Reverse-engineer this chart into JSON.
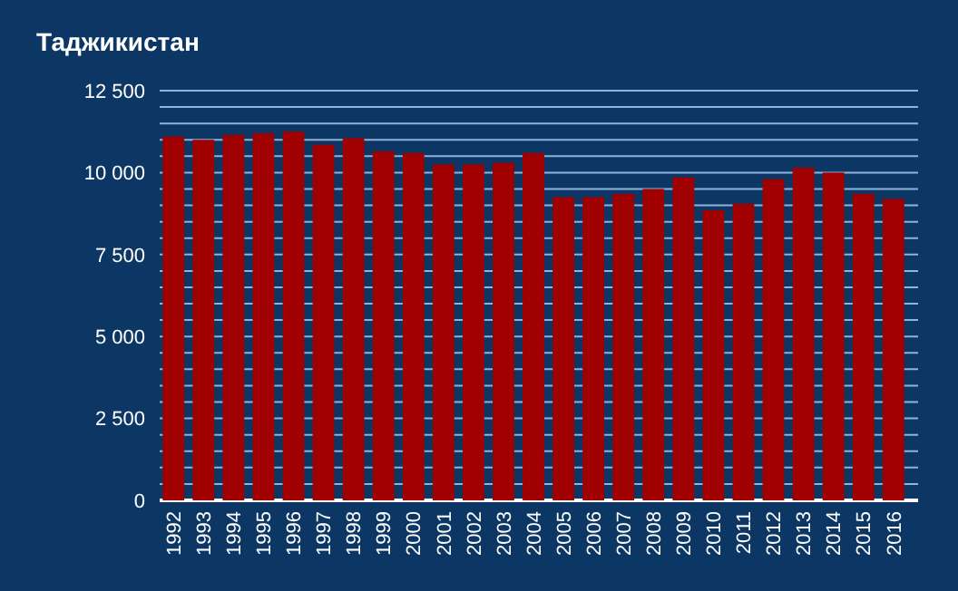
{
  "chart_data": {
    "type": "bar",
    "title": "Таджикистан",
    "categories": [
      "1992",
      "1993",
      "1994",
      "1995",
      "1996",
      "1997",
      "1998",
      "1999",
      "2000",
      "2001",
      "2002",
      "2003",
      "2004",
      "2005",
      "2006",
      "2007",
      "2008",
      "2009",
      "2010",
      "2011",
      "2012",
      "2013",
      "2014",
      "2015",
      "2016"
    ],
    "values": [
      11100,
      11000,
      11150,
      11200,
      11250,
      10850,
      11050,
      10650,
      10600,
      10250,
      10250,
      10300,
      10600,
      9250,
      9250,
      9350,
      9500,
      9850,
      8850,
      9050,
      9800,
      10150,
      10000,
      9350,
      9200
    ],
    "color": "#a00000",
    "ylim": [
      0,
      12500
    ],
    "yticks": [
      0,
      {
        "value": 500,
        "label": null
      },
      {
        "value": 1000,
        "label": null
      },
      {
        "value": 1500,
        "label": null
      },
      {
        "value": 2000,
        "label": null
      },
      {
        "value": 2500,
        "label": "2 500"
      },
      {
        "value": 3000,
        "label": null
      },
      {
        "value": 3500,
        "label": null
      },
      {
        "value": 4000,
        "label": null
      },
      {
        "value": 4500,
        "label": null
      },
      {
        "value": 5000,
        "label": "5 000"
      },
      {
        "value": 5500,
        "label": null
      },
      {
        "value": 6000,
        "label": null
      },
      {
        "value": 6500,
        "label": null
      },
      {
        "value": 7000,
        "label": null
      },
      {
        "value": 7500,
        "label": "7 500"
      },
      {
        "value": 8000,
        "label": null
      },
      {
        "value": 8500,
        "label": null
      },
      {
        "value": 9000,
        "label": null
      },
      {
        "value": 9500,
        "label": null
      },
      {
        "value": 10000,
        "label": "10 000"
      },
      {
        "value": 10500,
        "label": null
      },
      {
        "value": 11000,
        "label": null
      },
      {
        "value": 11500,
        "label": null
      },
      {
        "value": 12000,
        "label": null
      },
      {
        "value": 12500,
        "label": "12 500"
      }
    ],
    "grid": "y"
  }
}
